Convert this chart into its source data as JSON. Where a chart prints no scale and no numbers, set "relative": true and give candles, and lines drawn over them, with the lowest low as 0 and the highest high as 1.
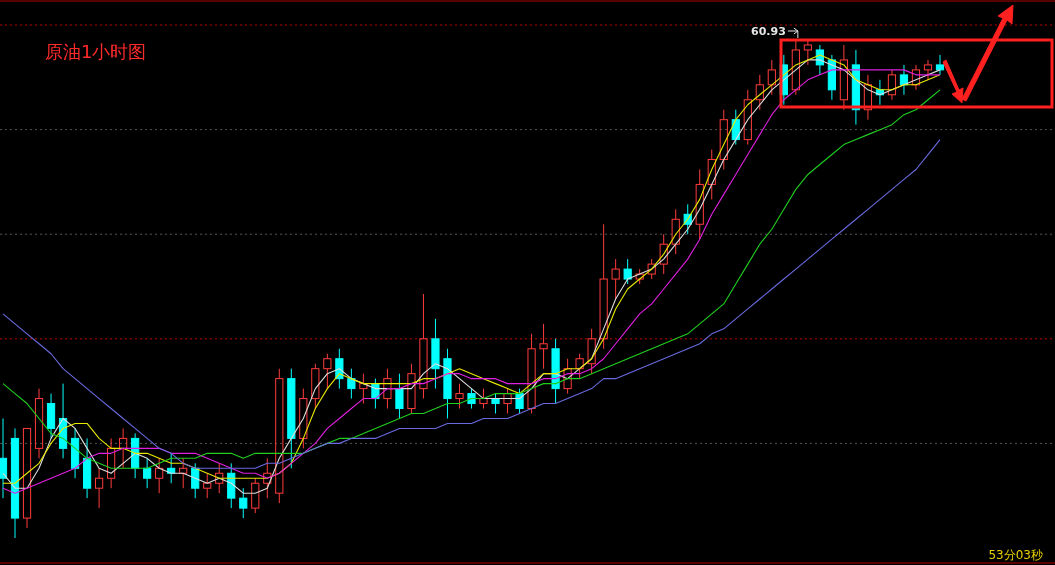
{
  "chart_data": {
    "type": "candlestick",
    "relative": true,
    "categories": [
      null,
      null,
      null,
      null,
      null,
      null,
      null,
      null,
      null,
      null,
      null,
      null,
      null,
      null,
      null,
      null,
      null,
      null,
      null,
      null,
      null,
      null,
      null,
      null,
      null,
      null,
      null,
      null,
      null,
      null,
      null,
      null,
      null,
      null,
      null,
      null,
      null,
      null,
      null,
      null,
      null,
      null,
      null,
      null,
      null,
      null,
      null,
      null,
      null,
      null,
      null,
      null,
      null,
      null,
      null,
      null,
      null,
      null,
      null,
      null,
      null,
      null,
      null,
      null,
      null,
      null,
      null,
      null,
      null,
      null,
      null,
      null,
      null,
      null,
      null,
      null,
      null,
      null,
      null
    ],
    "ohlc": [
      [
        0.16,
        0.24,
        0.08,
        0.12
      ],
      [
        0.2,
        0.22,
        0.0,
        0.04
      ],
      [
        0.04,
        0.22,
        0.02,
        0.22
      ],
      [
        0.18,
        0.3,
        0.16,
        0.28
      ],
      [
        0.27,
        0.29,
        0.2,
        0.22
      ],
      [
        0.24,
        0.31,
        0.16,
        0.18
      ],
      [
        0.2,
        0.22,
        0.12,
        0.14
      ],
      [
        0.16,
        0.2,
        0.08,
        0.1
      ],
      [
        0.1,
        0.14,
        0.06,
        0.12
      ],
      [
        0.12,
        0.2,
        0.1,
        0.18
      ],
      [
        0.18,
        0.22,
        0.14,
        0.2
      ],
      [
        0.2,
        0.21,
        0.12,
        0.14
      ],
      [
        0.14,
        0.16,
        0.1,
        0.12
      ],
      [
        0.12,
        0.16,
        0.09,
        0.14
      ],
      [
        0.14,
        0.17,
        0.11,
        0.13
      ],
      [
        0.13,
        0.16,
        0.1,
        0.14
      ],
      [
        0.14,
        0.15,
        0.08,
        0.1
      ],
      [
        0.1,
        0.13,
        0.08,
        0.11
      ],
      [
        0.11,
        0.15,
        0.09,
        0.13
      ],
      [
        0.13,
        0.15,
        0.06,
        0.08
      ],
      [
        0.08,
        0.1,
        0.04,
        0.06
      ],
      [
        0.06,
        0.12,
        0.05,
        0.11
      ],
      [
        0.11,
        0.16,
        0.08,
        0.13
      ],
      [
        0.09,
        0.34,
        0.07,
        0.32
      ],
      [
        0.32,
        0.34,
        0.14,
        0.2
      ],
      [
        0.2,
        0.3,
        0.18,
        0.28
      ],
      [
        0.28,
        0.35,
        0.26,
        0.34
      ],
      [
        0.34,
        0.37,
        0.3,
        0.36
      ],
      [
        0.36,
        0.38,
        0.3,
        0.32
      ],
      [
        0.32,
        0.34,
        0.28,
        0.3
      ],
      [
        0.3,
        0.33,
        0.27,
        0.31
      ],
      [
        0.31,
        0.32,
        0.26,
        0.28
      ],
      [
        0.28,
        0.34,
        0.26,
        0.32
      ],
      [
        0.3,
        0.33,
        0.24,
        0.26
      ],
      [
        0.26,
        0.35,
        0.25,
        0.33
      ],
      [
        0.3,
        0.49,
        0.28,
        0.4
      ],
      [
        0.4,
        0.44,
        0.3,
        0.34
      ],
      [
        0.36,
        0.38,
        0.24,
        0.28
      ],
      [
        0.28,
        0.31,
        0.26,
        0.29
      ],
      [
        0.29,
        0.3,
        0.26,
        0.27
      ],
      [
        0.27,
        0.3,
        0.26,
        0.28
      ],
      [
        0.28,
        0.29,
        0.25,
        0.27
      ],
      [
        0.27,
        0.3,
        0.25,
        0.29
      ],
      [
        0.29,
        0.3,
        0.25,
        0.26
      ],
      [
        0.26,
        0.41,
        0.25,
        0.38
      ],
      [
        0.38,
        0.43,
        0.34,
        0.39
      ],
      [
        0.38,
        0.4,
        0.27,
        0.3
      ],
      [
        0.3,
        0.36,
        0.29,
        0.34
      ],
      [
        0.34,
        0.37,
        0.32,
        0.36
      ],
      [
        0.35,
        0.42,
        0.33,
        0.4
      ],
      [
        0.4,
        0.63,
        0.38,
        0.52
      ],
      [
        0.52,
        0.56,
        0.48,
        0.54
      ],
      [
        0.54,
        0.56,
        0.51,
        0.52
      ],
      [
        0.52,
        0.54,
        0.51,
        0.53
      ],
      [
        0.53,
        0.56,
        0.52,
        0.55
      ],
      [
        0.55,
        0.61,
        0.53,
        0.59
      ],
      [
        0.59,
        0.66,
        0.57,
        0.64
      ],
      [
        0.65,
        0.67,
        0.61,
        0.63
      ],
      [
        0.63,
        0.74,
        0.6,
        0.71
      ],
      [
        0.71,
        0.78,
        0.68,
        0.76
      ],
      [
        0.76,
        0.86,
        0.74,
        0.84
      ],
      [
        0.84,
        0.86,
        0.79,
        0.8
      ],
      [
        0.8,
        0.9,
        0.79,
        0.88
      ],
      [
        0.88,
        0.93,
        0.86,
        0.91
      ],
      [
        0.91,
        0.96,
        0.89,
        0.94
      ],
      [
        0.95,
        0.97,
        0.87,
        0.89
      ],
      [
        0.9,
        1.0,
        0.89,
        0.98
      ],
      [
        0.98,
        1.0,
        0.95,
        0.99
      ],
      [
        0.98,
        0.99,
        0.93,
        0.95
      ],
      [
        0.96,
        0.97,
        0.88,
        0.9
      ],
      [
        0.88,
        0.99,
        0.86,
        0.96
      ],
      [
        0.95,
        0.98,
        0.83,
        0.86
      ],
      [
        0.86,
        0.93,
        0.84,
        0.91
      ],
      [
        0.9,
        0.92,
        0.87,
        0.89
      ],
      [
        0.89,
        0.94,
        0.88,
        0.93
      ],
      [
        0.93,
        0.95,
        0.89,
        0.91
      ],
      [
        0.91,
        0.95,
        0.9,
        0.94
      ],
      [
        0.94,
        0.96,
        0.92,
        0.95
      ],
      [
        0.95,
        0.97,
        0.93,
        0.94
      ]
    ],
    "series": [
      {
        "type": "line",
        "color": "#dddddd",
        "values": [
          0.13,
          0.1,
          0.1,
          0.14,
          0.2,
          0.24,
          0.22,
          0.18,
          0.14,
          0.13,
          0.15,
          0.17,
          0.16,
          0.14,
          0.13,
          0.13,
          0.12,
          0.11,
          0.12,
          0.11,
          0.09,
          0.09,
          0.1,
          0.16,
          0.2,
          0.24,
          0.3,
          0.33,
          0.34,
          0.32,
          0.31,
          0.3,
          0.3,
          0.3,
          0.3,
          0.33,
          0.35,
          0.34,
          0.32,
          0.3,
          0.28,
          0.28,
          0.28,
          0.28,
          0.3,
          0.33,
          0.33,
          0.32,
          0.34,
          0.36,
          0.42,
          0.48,
          0.52,
          0.53,
          0.54,
          0.56,
          0.59,
          0.62,
          0.66,
          0.71,
          0.76,
          0.8,
          0.84,
          0.87,
          0.9,
          0.92,
          0.94,
          0.96,
          0.96,
          0.95,
          0.94,
          0.92,
          0.9,
          0.89,
          0.9,
          0.91,
          0.92,
          0.93,
          0.94
        ]
      },
      {
        "type": "line",
        "color": "#e8e800",
        "values": [
          0.11,
          0.11,
          0.13,
          0.15,
          0.19,
          0.22,
          0.23,
          0.23,
          0.2,
          0.18,
          0.18,
          0.17,
          0.17,
          0.16,
          0.15,
          0.15,
          0.14,
          0.13,
          0.12,
          0.12,
          0.12,
          0.12,
          0.12,
          0.13,
          0.15,
          0.2,
          0.26,
          0.3,
          0.33,
          0.32,
          0.31,
          0.31,
          0.31,
          0.31,
          0.31,
          0.32,
          0.32,
          0.33,
          0.34,
          0.33,
          0.32,
          0.31,
          0.3,
          0.29,
          0.31,
          0.33,
          0.33,
          0.34,
          0.34,
          0.36,
          0.4,
          0.46,
          0.5,
          0.52,
          0.54,
          0.57,
          0.61,
          0.64,
          0.68,
          0.74,
          0.79,
          0.84,
          0.87,
          0.89,
          0.91,
          0.93,
          0.95,
          0.96,
          0.97,
          0.96,
          0.95,
          0.92,
          0.91,
          0.9,
          0.9,
          0.91,
          0.91,
          0.92,
          0.93
        ]
      },
      {
        "type": "line",
        "color": "#e020e0",
        "values": [
          0.1,
          0.09,
          0.1,
          0.11,
          0.12,
          0.13,
          0.14,
          0.16,
          0.17,
          0.17,
          0.18,
          0.18,
          0.18,
          0.18,
          0.17,
          0.17,
          0.17,
          0.16,
          0.15,
          0.14,
          0.13,
          0.13,
          0.12,
          0.13,
          0.15,
          0.17,
          0.19,
          0.22,
          0.24,
          0.26,
          0.28,
          0.28,
          0.3,
          0.3,
          0.31,
          0.31,
          0.32,
          0.33,
          0.33,
          0.32,
          0.32,
          0.32,
          0.31,
          0.31,
          0.31,
          0.32,
          0.32,
          0.33,
          0.33,
          0.34,
          0.36,
          0.39,
          0.42,
          0.45,
          0.47,
          0.5,
          0.53,
          0.56,
          0.6,
          0.65,
          0.69,
          0.73,
          0.77,
          0.81,
          0.85,
          0.88,
          0.9,
          0.92,
          0.93,
          0.94,
          0.94,
          0.94,
          0.94,
          0.94,
          0.94,
          0.94,
          0.93,
          0.93,
          0.93
        ]
      },
      {
        "type": "line",
        "color": "#20d020",
        "values": [
          0.31,
          0.29,
          0.27,
          0.24,
          0.21,
          0.2,
          0.18,
          0.16,
          0.15,
          0.14,
          0.14,
          0.14,
          0.14,
          0.15,
          0.16,
          0.16,
          0.16,
          0.17,
          0.17,
          0.17,
          0.16,
          0.17,
          0.17,
          0.17,
          0.17,
          0.17,
          0.18,
          0.19,
          0.2,
          0.2,
          0.21,
          0.22,
          0.23,
          0.24,
          0.25,
          0.25,
          0.26,
          0.27,
          0.27,
          0.28,
          0.28,
          0.29,
          0.29,
          0.29,
          0.3,
          0.31,
          0.31,
          0.32,
          0.32,
          0.33,
          0.34,
          0.35,
          0.36,
          0.37,
          0.38,
          0.39,
          0.4,
          0.41,
          0.43,
          0.45,
          0.47,
          0.51,
          0.55,
          0.59,
          0.62,
          0.66,
          0.7,
          0.73,
          0.75,
          0.77,
          0.79,
          0.8,
          0.81,
          0.82,
          0.83,
          0.85,
          0.86,
          0.88,
          0.9
        ]
      },
      {
        "type": "line",
        "color": "#6a6ae0",
        "values": [
          0.45,
          0.43,
          0.41,
          0.39,
          0.37,
          0.34,
          0.32,
          0.3,
          0.28,
          0.26,
          0.24,
          0.22,
          0.2,
          0.18,
          0.17,
          0.15,
          0.14,
          0.14,
          0.14,
          0.14,
          0.14,
          0.14,
          0.15,
          0.15,
          0.16,
          0.17,
          0.18,
          0.19,
          0.19,
          0.2,
          0.2,
          0.2,
          0.21,
          0.22,
          0.22,
          0.22,
          0.22,
          0.23,
          0.23,
          0.23,
          0.24,
          0.24,
          0.24,
          0.25,
          0.26,
          0.27,
          0.27,
          0.28,
          0.29,
          0.3,
          0.32,
          0.32,
          0.33,
          0.34,
          0.35,
          0.36,
          0.37,
          0.38,
          0.39,
          0.41,
          0.42,
          0.44,
          0.46,
          0.48,
          0.5,
          0.52,
          0.54,
          0.56,
          0.58,
          0.6,
          0.62,
          0.64,
          0.66,
          0.68,
          0.7,
          0.72,
          0.74,
          0.77,
          0.8
        ]
      }
    ],
    "ref_lines": [
      {
        "axis": "y",
        "value": 1.03,
        "color": "#c00000",
        "line_style": "dotted"
      },
      {
        "axis": "y",
        "value": 0.82,
        "color": "#555555",
        "line_style": "dotted"
      },
      {
        "axis": "y",
        "value": 0.61,
        "color": "#555555",
        "line_style": "dotted"
      },
      {
        "axis": "y",
        "value": 0.4,
        "color": "#c00000",
        "line_style": "dotted"
      },
      {
        "axis": "y",
        "value": 0.19,
        "color": "#555555",
        "line_style": "dotted"
      }
    ],
    "annotations": [
      "原油1小时图",
      "60.93",
      "53分03秒"
    ]
  }
}
